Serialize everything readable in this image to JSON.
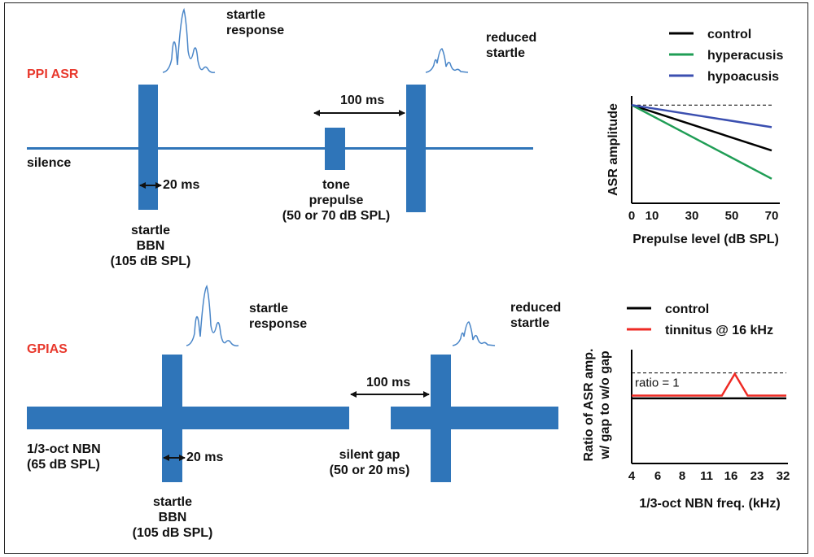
{
  "ppi": {
    "title": "PPI ASR",
    "silence": "silence",
    "startle_response": [
      "startle",
      "response"
    ],
    "reduced_startle": [
      "reduced",
      "startle"
    ],
    "startle_duration": "20 ms",
    "interval": "100 ms",
    "prepulse": [
      "tone",
      "prepulse",
      "(50 or 70 dB SPL)"
    ],
    "startle_stim": [
      "startle",
      "BBN",
      "(105 dB SPL)"
    ]
  },
  "gpias": {
    "title": "GPIAS",
    "background": [
      "1/3-oct NBN",
      "(65 dB SPL)"
    ],
    "startle_response": [
      "startle",
      "response"
    ],
    "reduced_startle": [
      "reduced",
      "startle"
    ],
    "startle_duration": "20 ms",
    "interval": "100 ms",
    "gap": [
      "silent gap",
      "(50 or 20 ms)"
    ],
    "startle_stim": [
      "startle",
      "BBN",
      "(105 dB SPL)"
    ]
  },
  "colors": {
    "stimulus": "#2f75b9",
    "title_red": "#e8382c",
    "control": "#000000",
    "hyperacusis": "#1f9d55",
    "hypoacusis": "#3b4fb0",
    "tinnitus": "#ee2a24"
  },
  "chart_data": [
    {
      "type": "line",
      "xlabel": "Prepulse level (dB SPL)",
      "ylabel": "ASR amplitude",
      "x_ticks": [
        "0",
        "10",
        "30",
        "50",
        "70"
      ],
      "xlim": [
        0,
        70
      ],
      "ylim": [
        0,
        1
      ],
      "reference_level": 0.8,
      "legend_position": "top-right",
      "series": [
        {
          "name": "control",
          "color": "#000000",
          "x": [
            0,
            70
          ],
          "y": [
            0.8,
            0.43
          ]
        },
        {
          "name": "hyperacusis",
          "color": "#1f9d55",
          "x": [
            0,
            70
          ],
          "y": [
            0.8,
            0.2
          ]
        },
        {
          "name": "hypoacusis",
          "color": "#3b4fb0",
          "x": [
            0,
            70
          ],
          "y": [
            0.8,
            0.62
          ]
        }
      ]
    },
    {
      "type": "line",
      "xlabel": "1/3-oct NBN freq. (kHz)",
      "ylabel": [
        "Ratio of ASR amp.",
        "w/ gap to w/o gap"
      ],
      "x_ticks": [
        "4",
        "6",
        "8",
        "11",
        "16",
        "23",
        "32"
      ],
      "xlim": [
        0,
        6
      ],
      "ylim": [
        0,
        1.5
      ],
      "reference_level": 1,
      "reference_label": "ratio = 1",
      "legend_position": "top-right",
      "series": [
        {
          "name": "control",
          "color": "#000000",
          "x": [
            0,
            6
          ],
          "y": [
            0.72,
            0.72
          ]
        },
        {
          "name": "tinnitus @ 16 kHz",
          "color": "#ee2a24",
          "x": [
            0,
            3.5,
            4,
            4.5,
            6
          ],
          "y": [
            0.75,
            0.75,
            0.99,
            0.75,
            0.75
          ]
        }
      ]
    }
  ]
}
